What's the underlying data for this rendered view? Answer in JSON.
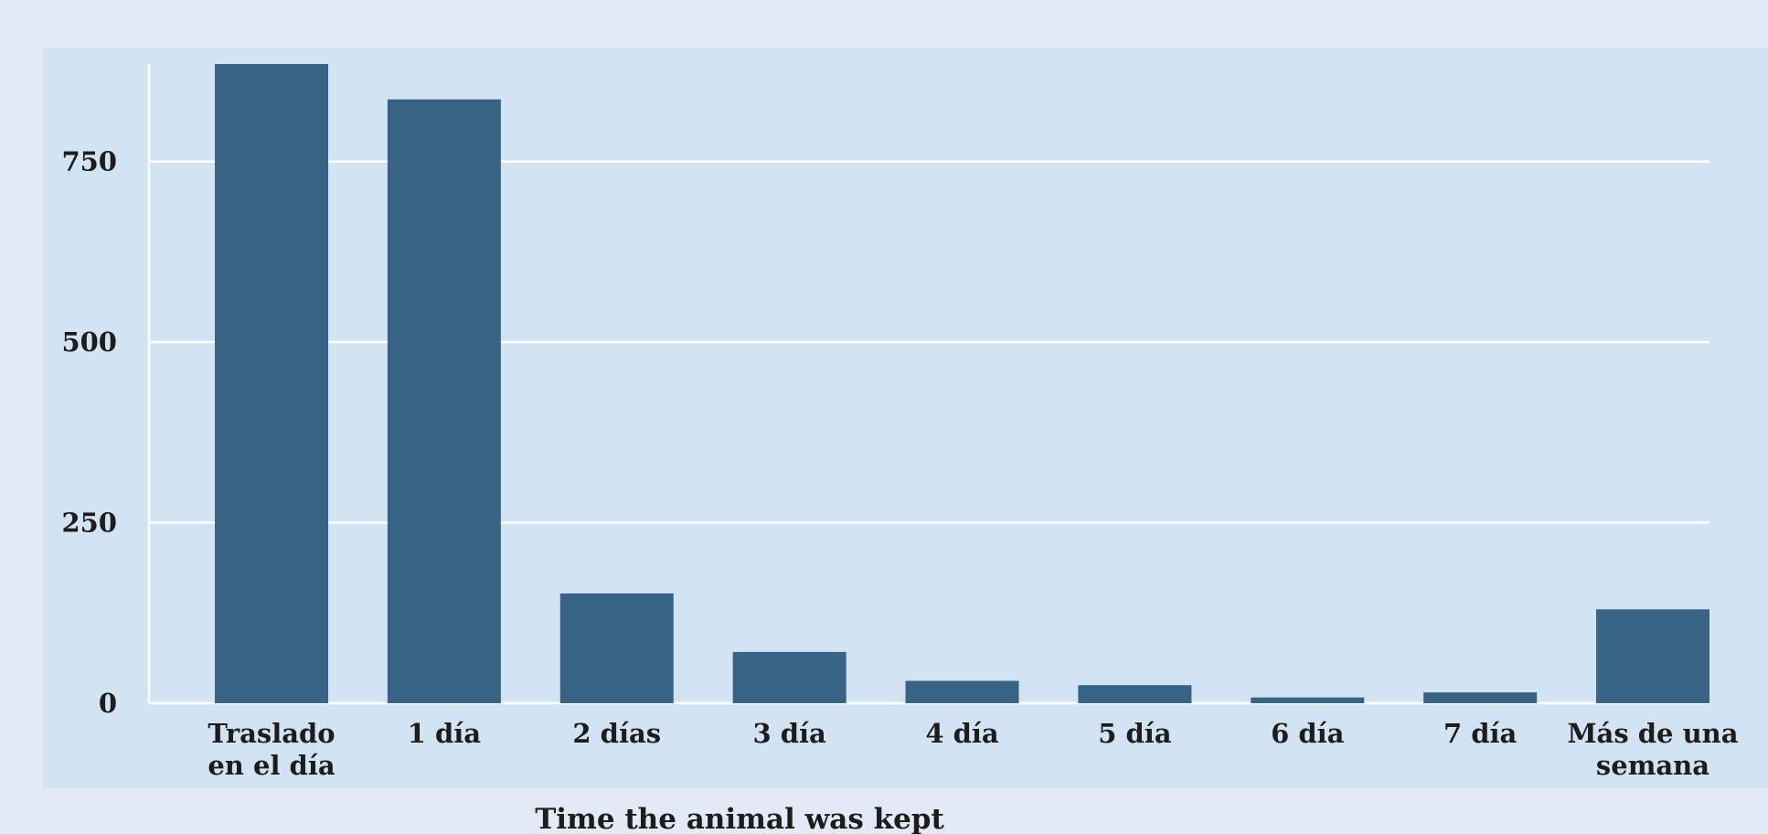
{
  "chart_data": {
    "type": "bar",
    "title": "",
    "xlabel": "Time the animal was kept",
    "ylabel": "",
    "categories": [
      [
        "Traslado",
        "en el día"
      ],
      [
        "1 día"
      ],
      [
        "2 días"
      ],
      [
        "3 día"
      ],
      [
        "4 día"
      ],
      [
        "5 día"
      ],
      [
        "6 día"
      ],
      [
        "7 día"
      ],
      [
        "Más de una",
        "semana"
      ]
    ],
    "values": [
      885,
      836,
      152,
      71,
      31,
      25,
      8,
      15,
      130
    ],
    "ylim": [
      0,
      885
    ],
    "yticks": [
      0,
      250,
      500,
      750
    ],
    "grid": true,
    "colors": {
      "page_background": "#e3eaf6",
      "plot_background": "#d2e3f3",
      "bar": "#386385",
      "grid": "#ffffff",
      "text": "#1d1d1d"
    }
  }
}
